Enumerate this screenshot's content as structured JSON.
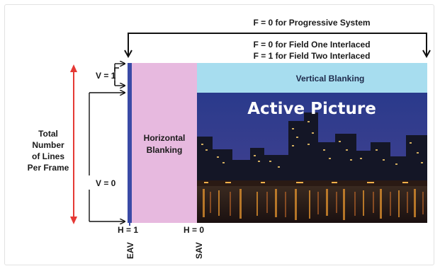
{
  "f_labels": {
    "progressive": "F = 0 for Progressive System",
    "field_one": "F = 0 for Field One Interlaced",
    "field_two": "F = 1 for Field Two Interlaced"
  },
  "v_labels": {
    "v1": "V = 1",
    "v0": "V = 0"
  },
  "h_labels": {
    "h1": "H = 1",
    "h0": "H = 0"
  },
  "markers": {
    "eav": "EAV",
    "sav": "SAV"
  },
  "regions": {
    "vertical_blanking": "Vertical Blanking",
    "active_picture": "Active Picture",
    "horizontal_blanking_line1": "Horizontal",
    "horizontal_blanking_line2": "Blanking"
  },
  "total_lines": {
    "line1": "Total",
    "line2": "Number",
    "line3": "of Lines",
    "line4": "Per Frame"
  },
  "colors": {
    "horizontal_blanking": "#e7b9df",
    "vertical_blanking": "#a7ddef",
    "eav_bar": "#3a4aa6",
    "total_arrow": "#e53935",
    "active_picture_sky": "#2a3a8c"
  }
}
